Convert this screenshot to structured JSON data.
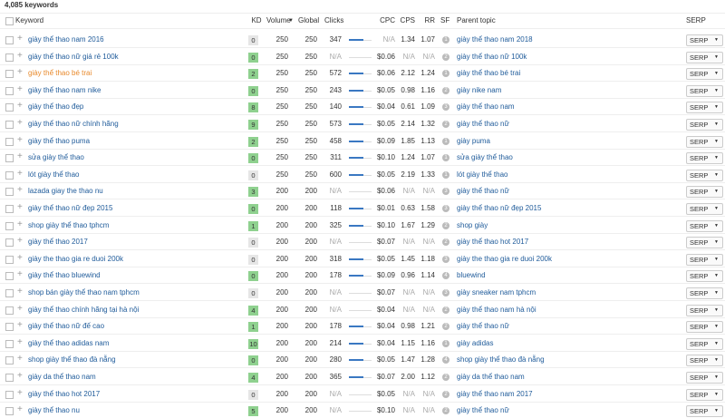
{
  "header": {
    "count": "4,085 keywords"
  },
  "columns": {
    "keyword": "Keyword",
    "kd": "KD",
    "volume": "Volume",
    "global": "Global",
    "clicks": "Clicks",
    "cpc": "CPC",
    "cps": "CPS",
    "rr": "RR",
    "sf": "SF",
    "parent_topic": "Parent topic",
    "serp": "SERP"
  },
  "serp_label": "SERP",
  "link_color": "#1f5b9a",
  "visited_color": "#e8892b",
  "rows": [
    {
      "keyword": "giày thể thao nam 2016",
      "kd": "0",
      "kd_color": "#e6e6e6",
      "volume": "250",
      "global": "250",
      "clicks": "347",
      "cpc": "N/A",
      "cps": "1.34",
      "rr": "1.07",
      "sf": "1",
      "parent_topic": "giày thể thao nam 2018"
    },
    {
      "keyword": "giày thể thao nữ giá rẻ 100k",
      "kd": "0",
      "kd_color": "#8fd18f",
      "volume": "250",
      "global": "250",
      "clicks": "N/A",
      "cpc": "$0.06",
      "cps": "N/A",
      "rr": "N/A",
      "sf": "2",
      "parent_topic": "giày thể thao nữ 100k"
    },
    {
      "keyword": "giày thể thao bé trai",
      "visited": true,
      "kd": "2",
      "kd_color": "#8fd18f",
      "volume": "250",
      "global": "250",
      "clicks": "572",
      "cpc": "$0.06",
      "cps": "2.12",
      "rr": "1.24",
      "sf": "1",
      "parent_topic": "giày thể thao bé trai"
    },
    {
      "keyword": "giày thể thao nam nike",
      "kd": "0",
      "kd_color": "#8fd18f",
      "volume": "250",
      "global": "250",
      "clicks": "243",
      "cpc": "$0.05",
      "cps": "0.98",
      "rr": "1.16",
      "sf": "2",
      "parent_topic": "giày nike nam"
    },
    {
      "keyword": "giày thể thao đẹp",
      "kd": "8",
      "kd_color": "#8fd18f",
      "volume": "250",
      "global": "250",
      "clicks": "140",
      "cpc": "$0.04",
      "cps": "0.61",
      "rr": "1.09",
      "sf": "3",
      "parent_topic": "giày thể thao nam"
    },
    {
      "keyword": "giày thể thao nữ chính hãng",
      "kd": "9",
      "kd_color": "#8fd18f",
      "volume": "250",
      "global": "250",
      "clicks": "573",
      "cpc": "$0.05",
      "cps": "2.14",
      "rr": "1.32",
      "sf": "2",
      "parent_topic": "giày thể thao nữ"
    },
    {
      "keyword": "giày thể thao puma",
      "kd": "2",
      "kd_color": "#8fd18f",
      "volume": "250",
      "global": "250",
      "clicks": "458",
      "cpc": "$0.09",
      "cps": "1.85",
      "rr": "1.13",
      "sf": "1",
      "parent_topic": "giày puma"
    },
    {
      "keyword": "sửa giày thể thao",
      "kd": "0",
      "kd_color": "#8fd18f",
      "volume": "250",
      "global": "250",
      "clicks": "311",
      "cpc": "$0.10",
      "cps": "1.24",
      "rr": "1.07",
      "sf": "1",
      "parent_topic": "sửa giày thể thao"
    },
    {
      "keyword": "lót giày thể thao",
      "kd": "0",
      "kd_color": "#e6e6e6",
      "volume": "250",
      "global": "250",
      "clicks": "600",
      "cpc": "$0.05",
      "cps": "2.19",
      "rr": "1.33",
      "sf": "1",
      "parent_topic": "lót giày thể thao"
    },
    {
      "keyword": "lazada giay the thao nu",
      "kd": "3",
      "kd_color": "#8fd18f",
      "volume": "200",
      "global": "200",
      "clicks": "N/A",
      "cpc": "$0.06",
      "cps": "N/A",
      "rr": "N/A",
      "sf": "3",
      "parent_topic": "giày thể thao nữ"
    },
    {
      "keyword": "giày thể thao nữ đẹp 2015",
      "kd": "0",
      "kd_color": "#8fd18f",
      "volume": "200",
      "global": "200",
      "clicks": "118",
      "cpc": "$0.01",
      "cps": "0.63",
      "rr": "1.58",
      "sf": "3",
      "parent_topic": "giày thể thao nữ đẹp 2015"
    },
    {
      "keyword": "shop giày thể thao tphcm",
      "kd": "1",
      "kd_color": "#8fd18f",
      "volume": "200",
      "global": "200",
      "clicks": "325",
      "cpc": "$0.10",
      "cps": "1.67",
      "rr": "1.29",
      "sf": "2",
      "parent_topic": "shop giày"
    },
    {
      "keyword": "giày thể thao 2017",
      "kd": "0",
      "kd_color": "#e6e6e6",
      "volume": "200",
      "global": "200",
      "clicks": "N/A",
      "cpc": "$0.07",
      "cps": "N/A",
      "rr": "N/A",
      "sf": "2",
      "parent_topic": "giày thể thao hot 2017"
    },
    {
      "keyword": "giày the thao gia re duoi 200k",
      "kd": "0",
      "kd_color": "#e6e6e6",
      "volume": "200",
      "global": "200",
      "clicks": "318",
      "cpc": "$0.05",
      "cps": "1.45",
      "rr": "1.18",
      "sf": "3",
      "parent_topic": "giày the thao gia re duoi 200k"
    },
    {
      "keyword": "giày thể thao bluewind",
      "kd": "0",
      "kd_color": "#8fd18f",
      "volume": "200",
      "global": "200",
      "clicks": "178",
      "cpc": "$0.09",
      "cps": "0.96",
      "rr": "1.14",
      "sf": "4",
      "parent_topic": "bluewind"
    },
    {
      "keyword": "shop bán giày thể thao nam tphcm",
      "kd": "0",
      "kd_color": "#e6e6e6",
      "volume": "200",
      "global": "200",
      "clicks": "N/A",
      "cpc": "$0.07",
      "cps": "N/A",
      "rr": "N/A",
      "sf": "3",
      "parent_topic": "giày sneaker nam tphcm"
    },
    {
      "keyword": "giày thể thao chính hãng tại hà nội",
      "kd": "4",
      "kd_color": "#8fd18f",
      "volume": "200",
      "global": "200",
      "clicks": "N/A",
      "cpc": "$0.04",
      "cps": "N/A",
      "rr": "N/A",
      "sf": "2",
      "parent_topic": "giày thể thao nam hà nội"
    },
    {
      "keyword": "giày thể thao nữ đế cao",
      "kd": "1",
      "kd_color": "#8fd18f",
      "volume": "200",
      "global": "200",
      "clicks": "178",
      "cpc": "$0.04",
      "cps": "0.98",
      "rr": "1.21",
      "sf": "2",
      "parent_topic": "giày thể thao nữ"
    },
    {
      "keyword": "giày thể thao adidas nam",
      "kd": "10",
      "kd_color": "#8fd18f",
      "volume": "200",
      "global": "200",
      "clicks": "214",
      "cpc": "$0.04",
      "cps": "1.15",
      "rr": "1.16",
      "sf": "1",
      "parent_topic": "giày adidas"
    },
    {
      "keyword": "shop giày thể thao đà nẵng",
      "kd": "0",
      "kd_color": "#8fd18f",
      "volume": "200",
      "global": "200",
      "clicks": "280",
      "cpc": "$0.05",
      "cps": "1.47",
      "rr": "1.28",
      "sf": "4",
      "parent_topic": "shop giày thể thao đà nẵng"
    },
    {
      "keyword": "giày da thể thao nam",
      "kd": "4",
      "kd_color": "#8fd18f",
      "volume": "200",
      "global": "200",
      "clicks": "365",
      "cpc": "$0.07",
      "cps": "2.00",
      "rr": "1.12",
      "sf": "2",
      "parent_topic": "giày da thể thao nam"
    },
    {
      "keyword": "giày thể thao hot 2017",
      "kd": "0",
      "kd_color": "#e6e6e6",
      "volume": "200",
      "global": "200",
      "clicks": "N/A",
      "cpc": "$0.05",
      "cps": "N/A",
      "rr": "N/A",
      "sf": "2",
      "parent_topic": "giày thể thao nam 2017"
    },
    {
      "keyword": "giày thể thao nu",
      "kd": "5",
      "kd_color": "#8fd18f",
      "volume": "200",
      "global": "200",
      "clicks": "N/A",
      "cpc": "$0.10",
      "cps": "N/A",
      "rr": "N/A",
      "sf": "2",
      "parent_topic": "giày thể thao nữ"
    }
  ]
}
